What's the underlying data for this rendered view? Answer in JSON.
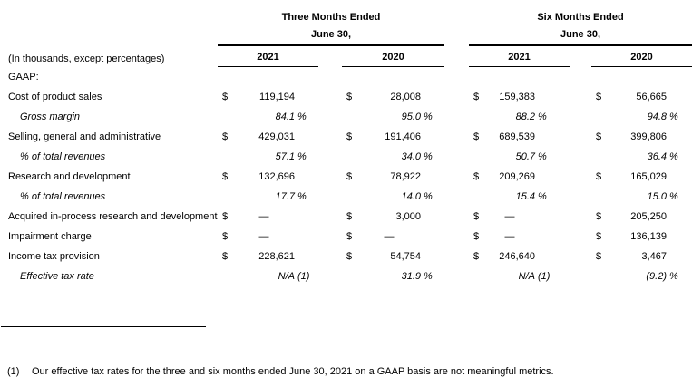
{
  "title_note": "(In thousands, except percentages)",
  "section": "GAAP:",
  "header": {
    "groups": [
      {
        "title": "Three Months Ended",
        "subtitle": "June 30,",
        "years": [
          "2021",
          "2020"
        ]
      },
      {
        "title": "Six Months Ended",
        "subtitle": "June 30,",
        "years": [
          "2021",
          "2020"
        ]
      }
    ]
  },
  "rows": [
    {
      "label": "Cost of product sales",
      "italic": false,
      "cells": [
        {
          "cur": "$",
          "val": "119,194",
          "suf": ""
        },
        {
          "cur": "$",
          "val": "28,008",
          "suf": ""
        },
        {
          "cur": "$",
          "val": "159,383",
          "suf": ""
        },
        {
          "cur": "$",
          "val": "56,665",
          "suf": ""
        }
      ]
    },
    {
      "label": "Gross margin",
      "italic": true,
      "cells": [
        {
          "cur": "",
          "val": "84.1",
          "suf": "%"
        },
        {
          "cur": "",
          "val": "95.0",
          "suf": "%"
        },
        {
          "cur": "",
          "val": "88.2",
          "suf": "%"
        },
        {
          "cur": "",
          "val": "94.8",
          "suf": "%"
        }
      ]
    },
    {
      "label": "Selling, general and administrative",
      "italic": false,
      "cells": [
        {
          "cur": "$",
          "val": "429,031",
          "suf": ""
        },
        {
          "cur": "$",
          "val": "191,406",
          "suf": ""
        },
        {
          "cur": "$",
          "val": "689,539",
          "suf": ""
        },
        {
          "cur": "$",
          "val": "399,806",
          "suf": ""
        }
      ]
    },
    {
      "label": "% of total revenues",
      "italic": true,
      "cells": [
        {
          "cur": "",
          "val": "57.1",
          "suf": "%"
        },
        {
          "cur": "",
          "val": "34.0",
          "suf": "%"
        },
        {
          "cur": "",
          "val": "50.7",
          "suf": "%"
        },
        {
          "cur": "",
          "val": "36.4",
          "suf": "%"
        }
      ]
    },
    {
      "label": "Research and development",
      "italic": false,
      "cells": [
        {
          "cur": "$",
          "val": "132,696",
          "suf": ""
        },
        {
          "cur": "$",
          "val": "78,922",
          "suf": ""
        },
        {
          "cur": "$",
          "val": "209,269",
          "suf": ""
        },
        {
          "cur": "$",
          "val": "165,029",
          "suf": ""
        }
      ]
    },
    {
      "label": "% of total revenues",
      "italic": true,
      "cells": [
        {
          "cur": "",
          "val": "17.7",
          "suf": "%"
        },
        {
          "cur": "",
          "val": "14.0",
          "suf": "%"
        },
        {
          "cur": "",
          "val": "15.4",
          "suf": "%"
        },
        {
          "cur": "",
          "val": "15.0",
          "suf": "%"
        }
      ]
    },
    {
      "label": "Acquired in-process research and development",
      "italic": false,
      "cells": [
        {
          "cur": "$",
          "val": "—",
          "suf": "",
          "dash": true
        },
        {
          "cur": "$",
          "val": "3,000",
          "suf": ""
        },
        {
          "cur": "$",
          "val": "—",
          "suf": "",
          "dash": true
        },
        {
          "cur": "$",
          "val": "205,250",
          "suf": ""
        }
      ]
    },
    {
      "label": "Impairment charge",
      "italic": false,
      "cells": [
        {
          "cur": "$",
          "val": "—",
          "suf": "",
          "dash": true
        },
        {
          "cur": "$",
          "val": "—",
          "suf": "",
          "dash": true
        },
        {
          "cur": "$",
          "val": "—",
          "suf": "",
          "dash": true
        },
        {
          "cur": "$",
          "val": "136,139",
          "suf": ""
        }
      ]
    },
    {
      "label": "Income tax provision",
      "italic": false,
      "cells": [
        {
          "cur": "$",
          "val": "228,621",
          "suf": ""
        },
        {
          "cur": "$",
          "val": "54,754",
          "suf": ""
        },
        {
          "cur": "$",
          "val": "246,640",
          "suf": ""
        },
        {
          "cur": "$",
          "val": "3,467",
          "suf": ""
        }
      ]
    },
    {
      "label": "Effective tax rate",
      "italic": true,
      "cells": [
        {
          "cur": "",
          "val": "N/A",
          "suf": "(1)"
        },
        {
          "cur": "",
          "val": "31.9",
          "suf": "%"
        },
        {
          "cur": "",
          "val": "N/A",
          "suf": "(1)"
        },
        {
          "cur": "",
          "val": "(9.2)",
          "suf": "%"
        }
      ]
    }
  ],
  "footnote": {
    "ref": "(1)",
    "text": "Our effective tax rates for the three and six months ended June 30, 2021 on a GAAP basis are not meaningful metrics."
  }
}
